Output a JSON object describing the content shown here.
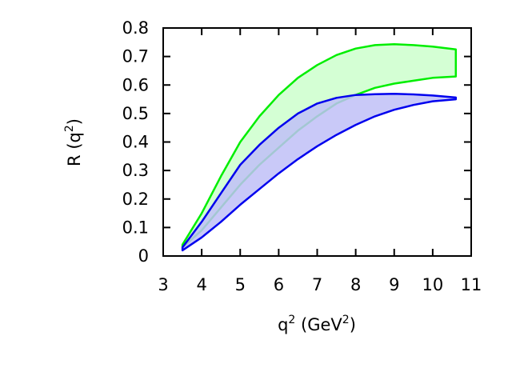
{
  "chart_data": {
    "type": "area",
    "xlabel": {
      "base": "q",
      "sup": "2",
      "mid": " (GeV",
      "unit_sup": "2",
      "end": ")"
    },
    "ylabel": {
      "base": "R (q",
      "sup": "2",
      "end": ")"
    },
    "xlim": [
      3,
      11
    ],
    "ylim": [
      0,
      0.8
    ],
    "xticks": [
      "3",
      "4",
      "5",
      "6",
      "7",
      "8",
      "9",
      "10",
      "11"
    ],
    "yticks": [
      "0",
      "0.1",
      "0.2",
      "0.3",
      "0.4",
      "0.5",
      "0.6",
      "0.7",
      "0.8"
    ],
    "grid": false,
    "legend": "none",
    "series": [
      {
        "color": "#00ee00",
        "fill": "#ccffcc",
        "x": [
          3.5,
          4.0,
          4.5,
          5.0,
          5.5,
          6.0,
          6.5,
          7.0,
          7.5,
          8.0,
          8.5,
          9.0,
          9.5,
          10.0,
          10.6
        ],
        "upper": [
          0.04,
          0.15,
          0.28,
          0.4,
          0.49,
          0.565,
          0.625,
          0.67,
          0.705,
          0.728,
          0.74,
          0.743,
          0.74,
          0.735,
          0.725
        ],
        "lower": [
          0.03,
          0.09,
          0.17,
          0.25,
          0.32,
          0.38,
          0.44,
          0.49,
          0.535,
          0.565,
          0.59,
          0.605,
          0.615,
          0.625,
          0.63
        ]
      },
      {
        "color": "#0000ee",
        "fill": "#bfbff7",
        "x": [
          3.5,
          4.0,
          4.5,
          5.0,
          5.5,
          6.0,
          6.5,
          7.0,
          7.5,
          8.0,
          8.5,
          9.0,
          9.5,
          10.0,
          10.6
        ],
        "upper": [
          0.03,
          0.12,
          0.22,
          0.32,
          0.39,
          0.45,
          0.5,
          0.535,
          0.555,
          0.565,
          0.568,
          0.569,
          0.567,
          0.563,
          0.556
        ],
        "lower": [
          0.02,
          0.065,
          0.12,
          0.18,
          0.235,
          0.29,
          0.34,
          0.385,
          0.425,
          0.46,
          0.49,
          0.513,
          0.53,
          0.543,
          0.55
        ]
      }
    ]
  }
}
